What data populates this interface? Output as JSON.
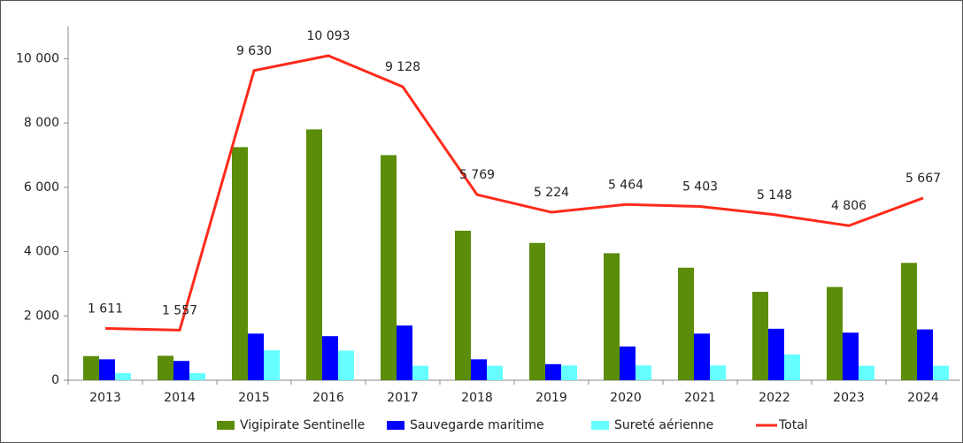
{
  "chart_data": {
    "type": "bar_line",
    "categories": [
      "2013",
      "2014",
      "2015",
      "2016",
      "2017",
      "2018",
      "2019",
      "2020",
      "2021",
      "2022",
      "2023",
      "2024"
    ],
    "series": [
      {
        "name": "Vigipirate Sentinelle",
        "type": "bar",
        "color": "#5b8c0a",
        "values": [
          750,
          760,
          7250,
          7800,
          7000,
          4650,
          4270,
          3950,
          3500,
          2750,
          2900,
          3650
        ]
      },
      {
        "name": "Sauvegarde maritime",
        "type": "bar",
        "color": "#0000ff",
        "values": [
          650,
          600,
          1450,
          1370,
          1700,
          650,
          500,
          1050,
          1450,
          1600,
          1480,
          1580
        ]
      },
      {
        "name": "Sureté aérienne",
        "type": "bar",
        "color": "#66ffff",
        "values": [
          220,
          220,
          930,
          920,
          450,
          450,
          460,
          460,
          460,
          800,
          450,
          450
        ]
      },
      {
        "name": "Total",
        "type": "line",
        "color": "#ff2a1a",
        "values": [
          1611,
          1557,
          9630,
          10093,
          9128,
          5769,
          5224,
          5464,
          5403,
          5148,
          4806,
          5667
        ],
        "value_labels": [
          "1 611",
          "1 557",
          "9 630",
          "10 093",
          "9 128",
          "5 769",
          "5 224",
          "5 464",
          "5 403",
          "5 148",
          "4 806",
          "5 667"
        ]
      }
    ],
    "ylim": [
      0,
      11000
    ],
    "yticks": [
      0,
      {
        "value": 2000,
        "label": "2 000"
      },
      {
        "value": 4000,
        "label": "4 000"
      },
      {
        "value": 6000,
        "label": "6 000"
      },
      {
        "value": 8000,
        "label": "8 000"
      },
      {
        "value": 10000,
        "label": "10 000"
      }
    ],
    "grid": false,
    "legend": "bottom"
  }
}
